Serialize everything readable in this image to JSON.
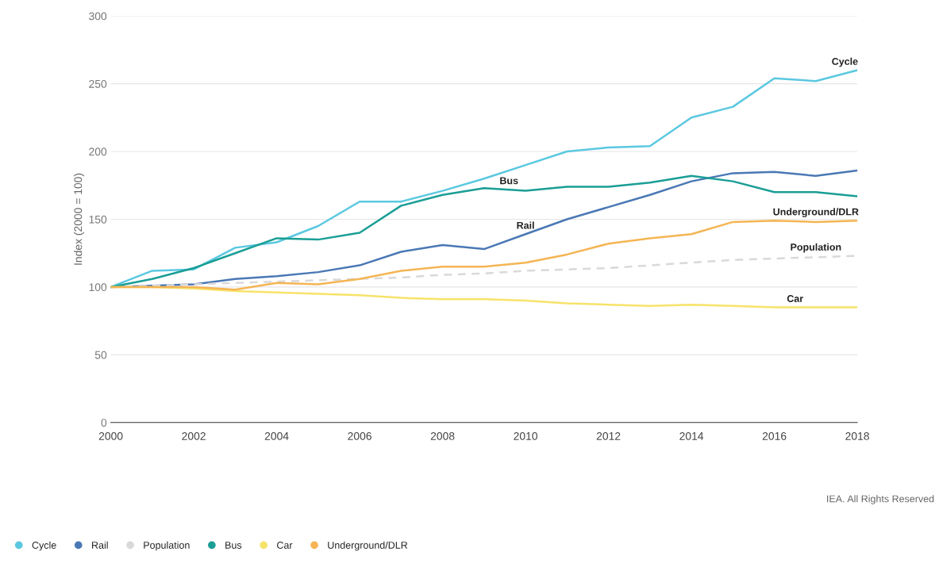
{
  "chart_data": {
    "type": "line",
    "ylabel": "Index (2000 = 100)",
    "x": [
      2000,
      2001,
      2002,
      2003,
      2004,
      2005,
      2006,
      2007,
      2008,
      2009,
      2010,
      2011,
      2012,
      2013,
      2014,
      2015,
      2016,
      2017,
      2018
    ],
    "series": [
      {
        "name": "Cycle",
        "color": "#5bc8e0",
        "values": [
          100,
          112,
          113,
          129,
          133,
          145,
          163,
          163,
          171,
          180,
          190,
          200,
          203,
          204,
          225,
          233,
          254,
          252,
          260
        ]
      },
      {
        "name": "Rail",
        "color": "#4a78b5",
        "values": [
          100,
          101,
          102,
          106,
          108,
          111,
          116,
          126,
          131,
          128,
          139,
          150,
          159,
          168,
          178,
          184,
          185,
          182,
          186
        ]
      },
      {
        "name": "Population",
        "color": "#d9d9d9",
        "line_style": "dashed",
        "values": [
          100,
          101,
          102,
          103,
          104,
          105,
          106,
          107,
          109,
          110,
          112,
          113,
          114,
          116,
          118,
          120,
          121,
          122,
          123
        ]
      },
      {
        "name": "Bus",
        "color": "#1a9e96",
        "values": [
          100,
          106,
          114,
          125,
          136,
          135,
          140,
          160,
          168,
          173,
          171,
          174,
          174,
          177,
          182,
          178,
          170,
          170,
          167
        ]
      },
      {
        "name": "Car",
        "color": "#f7e36a",
        "values": [
          100,
          100,
          99,
          97,
          96,
          95,
          94,
          92,
          91,
          91,
          90,
          88,
          87,
          86,
          87,
          86,
          85,
          85,
          85
        ]
      },
      {
        "name": "Underground/DLR",
        "color": "#f5b554",
        "values": [
          100,
          100,
          100,
          98,
          103,
          102,
          106,
          112,
          115,
          115,
          118,
          124,
          132,
          136,
          139,
          148,
          149,
          148,
          149
        ]
      }
    ],
    "annotations": [
      {
        "text": "Cycle",
        "x": 2017.7,
        "y": 260
      },
      {
        "text": "Bus",
        "x": 2009.6,
        "y": 172
      },
      {
        "text": "Rail",
        "x": 2010,
        "y": 139
      },
      {
        "text": "Underground/DLR",
        "x": 2017,
        "y": 149
      },
      {
        "text": "Population",
        "x": 2017,
        "y": 123
      },
      {
        "text": "Car",
        "x": 2016.5,
        "y": 85
      },
      "IEA. All Rights Reserved"
    ],
    "xlim": [
      2000,
      2018
    ],
    "xticks": [
      2000,
      2002,
      2004,
      2006,
      2008,
      2010,
      2012,
      2014,
      2016,
      2018
    ],
    "ylim": [
      0,
      300
    ],
    "yticks": [
      0,
      50,
      100,
      150,
      200,
      250,
      300
    ],
    "grid": "y",
    "legend": "bottom",
    "marker": "none",
    "line_style": "solid"
  }
}
